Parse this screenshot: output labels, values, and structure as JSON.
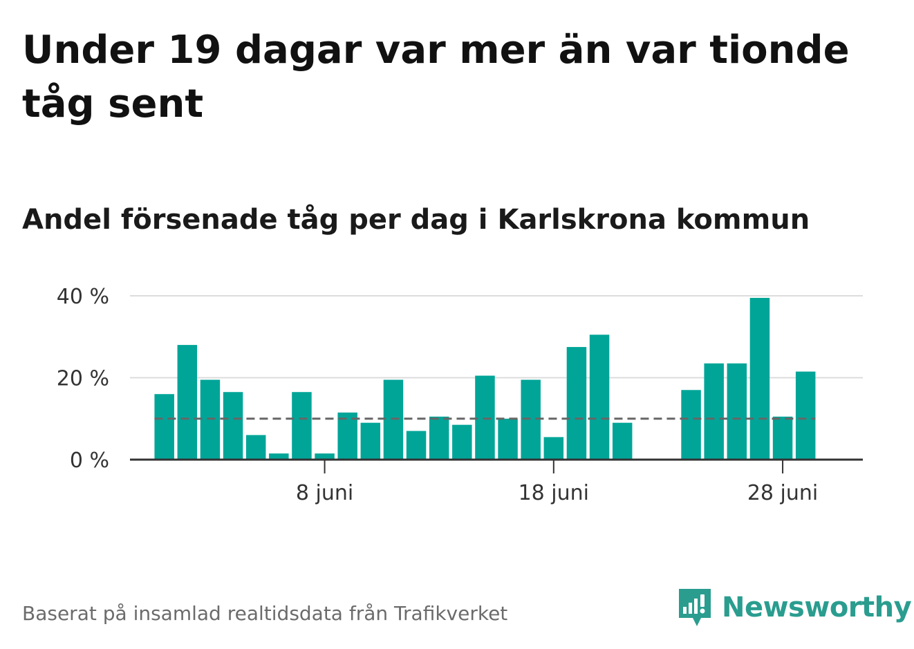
{
  "title": "Under 19 dagar var mer än var tionde tåg sent",
  "subtitle": "Andel försenade tåg per dag i Karlskrona kommun",
  "footer": {
    "source": "Baserat på insamlad realtidsdata från Trafikverket",
    "brand": "Newsworthy",
    "brand_icon": "bar-chart-speech-bubble-icon"
  },
  "colors": {
    "bar": "#00a598",
    "grid": "#dcdcdc",
    "axis": "#333333",
    "reference_line": "#666666",
    "brand": "#2a9d8f"
  },
  "chart_data": {
    "type": "bar",
    "title": "Andel försenade tåg per dag i Karlskrona kommun",
    "xlabel": "",
    "ylabel": "",
    "x": [
      1,
      2,
      3,
      4,
      5,
      6,
      7,
      8,
      9,
      10,
      11,
      12,
      13,
      14,
      15,
      16,
      17,
      18,
      19,
      20,
      21,
      22,
      23,
      24,
      25,
      26,
      27,
      28,
      29,
      30
    ],
    "values": [
      16,
      28,
      19.5,
      16.5,
      6,
      1.5,
      16.5,
      1.5,
      11.5,
      9,
      19.5,
      7,
      10.5,
      8.5,
      20.5,
      10,
      19.5,
      5.5,
      27.5,
      30.5,
      9,
      null,
      null,
      17,
      23.5,
      23.5,
      39.5,
      10.5,
      21.5,
      null
    ],
    "x_ticks": [
      {
        "x": 8,
        "label": "8 juni"
      },
      {
        "x": 18,
        "label": "18 juni"
      },
      {
        "x": 28,
        "label": "28 juni"
      }
    ],
    "y_ticks": [
      {
        "value": 0,
        "label": "0 %"
      },
      {
        "value": 20,
        "label": "20 %"
      },
      {
        "value": 40,
        "label": "40 %"
      }
    ],
    "ylim": [
      0,
      40
    ],
    "xlim": [
      -0.5,
      31.5
    ],
    "reference_line": 10,
    "grid": true,
    "legend": "none"
  }
}
